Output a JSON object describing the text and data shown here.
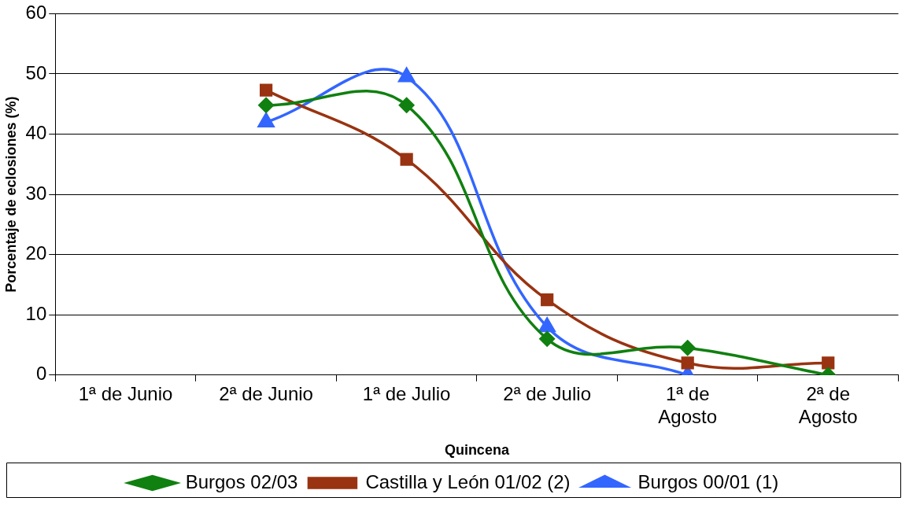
{
  "chart_data": {
    "type": "line",
    "xlabel": "Quincena",
    "ylabel": "Porcentaje de eclosiones (%)",
    "categories": [
      "1ª de Junio",
      "2ª de Junio",
      "1ª de Julio",
      "2ª de Julio",
      "1ª de Agosto",
      "2ª de Agosto"
    ],
    "series": [
      {
        "name": "Burgos 02/03",
        "color": "#108010",
        "marker": "diamond",
        "values": [
          null,
          44.8,
          44.8,
          6,
          4.5,
          0
        ]
      },
      {
        "name": "Castilla y León 01/02 (2)",
        "color": "#993311",
        "marker": "square",
        "values": [
          null,
          47.3,
          35.8,
          12.5,
          2,
          2
        ]
      },
      {
        "name": "Burgos 00/01 (1)",
        "color": "#3366ff",
        "marker": "triangle",
        "values": [
          null,
          42,
          49.5,
          8,
          0,
          null
        ]
      }
    ],
    "ylim": [
      0,
      60
    ],
    "yticks": [
      0,
      10,
      20,
      30,
      40,
      50,
      60
    ],
    "grid": "y",
    "legend": "bottom"
  }
}
